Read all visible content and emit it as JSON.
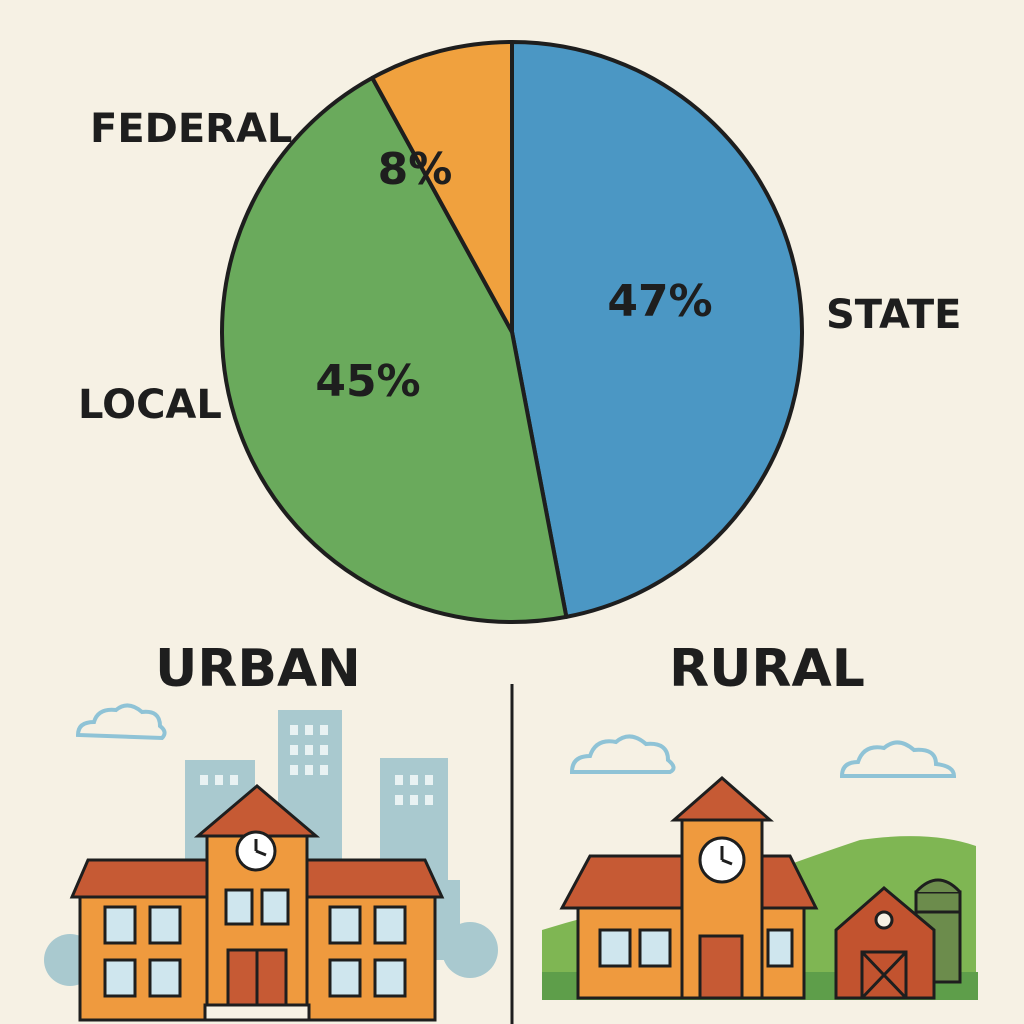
{
  "chart_data": {
    "type": "pie",
    "slices": [
      {
        "name": "STATE",
        "value": 47,
        "label": "47%",
        "color": "#4b97c4"
      },
      {
        "name": "LOCAL",
        "value": 45,
        "label": "45%",
        "color": "#6aaa5c"
      },
      {
        "name": "FEDERAL",
        "value": 8,
        "label": "8%",
        "color": "#f0a13e"
      }
    ]
  },
  "panels": {
    "urban": {
      "title": "URBAN"
    },
    "rural": {
      "title": "RURAL"
    }
  },
  "colors": {
    "background": "#f6f1e4",
    "outline": "#1e1e1e",
    "building": "#ef9a3e",
    "roof": "#c65a34",
    "window": "#cfe6ee",
    "skyline": "#a9c9cf",
    "cloud": "#8fc3d6",
    "hill": "#7fb653",
    "barn": "#c2532f",
    "silo": "#6c8c4c",
    "grass": "#5e9e4a"
  }
}
